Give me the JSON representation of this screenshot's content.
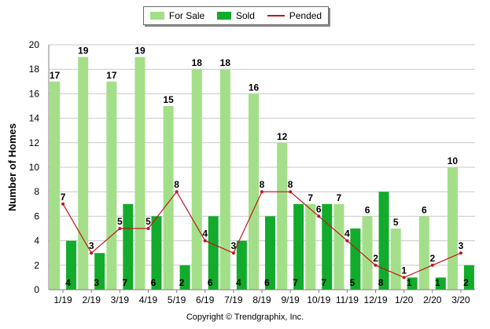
{
  "chart_data": {
    "type": "bar",
    "ylabel": "Number of Homes",
    "xlabel": "",
    "ylim": [
      0,
      20
    ],
    "yticks": [
      0,
      2,
      4,
      6,
      8,
      10,
      12,
      14,
      16,
      18,
      20
    ],
    "grid": true,
    "legend_position": "top-center",
    "categories": [
      "1/19",
      "2/19",
      "3/19",
      "4/19",
      "5/19",
      "6/19",
      "7/19",
      "8/19",
      "9/19",
      "10/19",
      "11/19",
      "12/19",
      "1/20",
      "2/20",
      "3/20"
    ],
    "series": [
      {
        "name": "For Sale",
        "type": "bar",
        "color": "#a3df88",
        "values": [
          17,
          19,
          17,
          19,
          15,
          18,
          18,
          16,
          12,
          7,
          7,
          6,
          5,
          6,
          10
        ]
      },
      {
        "name": "Sold",
        "type": "bar",
        "color": "#12ab2c",
        "values": [
          4,
          3,
          7,
          6,
          2,
          6,
          4,
          6,
          7,
          7,
          5,
          8,
          1,
          1,
          2
        ]
      },
      {
        "name": "Pended",
        "type": "line",
        "color": "#c0161c",
        "values": [
          7,
          3,
          5,
          5,
          8,
          4,
          3,
          8,
          8,
          6,
          4,
          2,
          1,
          2,
          3
        ]
      }
    ]
  },
  "legend": {
    "for_sale": "For Sale",
    "sold": "Sold",
    "pended": "Pended"
  },
  "footer": "Copyright © Trendgraphix, Inc."
}
